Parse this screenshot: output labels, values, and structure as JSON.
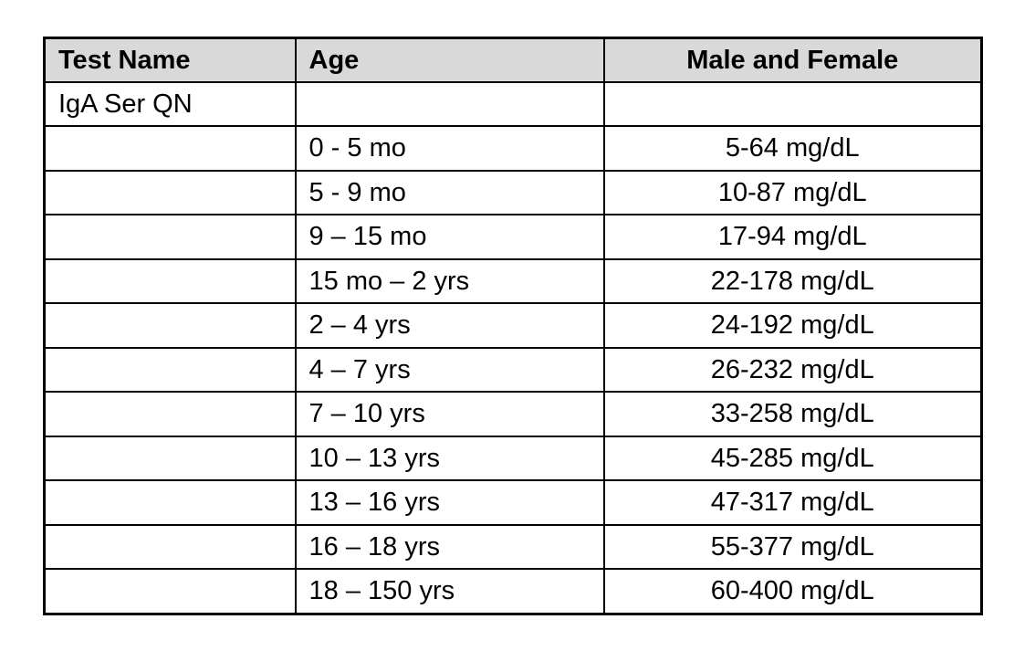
{
  "table": {
    "headers": {
      "test_name": "Test Name",
      "age": "Age",
      "male_female": "Male and Female"
    },
    "rows": [
      {
        "test": "IgA Ser QN",
        "age": "",
        "value": ""
      },
      {
        "test": "",
        "age": "0 - 5 mo",
        "value": "5-64 mg/dL"
      },
      {
        "test": "",
        "age": "5 - 9 mo",
        "value": "10-87 mg/dL"
      },
      {
        "test": "",
        "age": "9 – 15 mo",
        "value": "17-94 mg/dL"
      },
      {
        "test": "",
        "age": "15 mo – 2 yrs",
        "value": "22-178 mg/dL"
      },
      {
        "test": "",
        "age": "2 – 4 yrs",
        "value": "24-192 mg/dL"
      },
      {
        "test": "",
        "age": "4 – 7 yrs",
        "value": "26-232 mg/dL"
      },
      {
        "test": "",
        "age": "7 – 10 yrs",
        "value": "33-258 mg/dL"
      },
      {
        "test": "",
        "age": "10 – 13 yrs",
        "value": "45-285 mg/dL"
      },
      {
        "test": "",
        "age": "13 – 16 yrs",
        "value": "47-317 mg/dL"
      },
      {
        "test": "",
        "age": "16 – 18 yrs",
        "value": "55-377 mg/dL"
      },
      {
        "test": "",
        "age": "18 – 150 yrs",
        "value": "60-400 mg/dL"
      }
    ]
  },
  "colors": {
    "header_bg": "#d9d9d9",
    "border": "#000000",
    "text": "#000000",
    "page_bg": "#ffffff"
  }
}
